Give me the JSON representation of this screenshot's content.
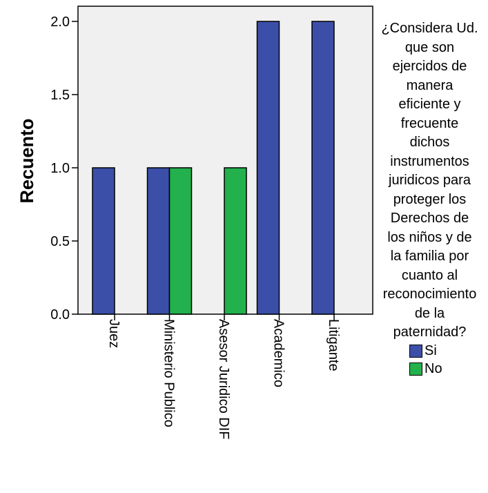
{
  "chart_data": {
    "type": "bar",
    "ylabel": "Recuento",
    "categories": [
      "Juez",
      "Ministerio Publico",
      "Asesor Juridico DIF",
      "Academico",
      "Litigante"
    ],
    "yticks": [
      "0.0",
      "0.5",
      "1.0",
      "1.5",
      "2.0"
    ],
    "ylim": [
      0,
      2.0
    ],
    "grid": false,
    "legend_position": "right",
    "legend_title": "¿Considera Ud.\nque son\nejercidos de\nmanera\neficiente y\nfrecuente\ndichos\ninstrumentos\njuridicos para\nproteger los\nDerechos de\nlos niños y de\nla familia por\ncuanto al\nreconocimiento\nde la\npaternidad?",
    "series": [
      {
        "name": "Si",
        "color": "#3B4FA8",
        "values": [
          1,
          1,
          0,
          2,
          2
        ]
      },
      {
        "name": "No",
        "color": "#22B14C",
        "values": [
          0,
          1,
          1,
          0,
          0
        ]
      }
    ],
    "plot_background": "#F0F0F0"
  }
}
